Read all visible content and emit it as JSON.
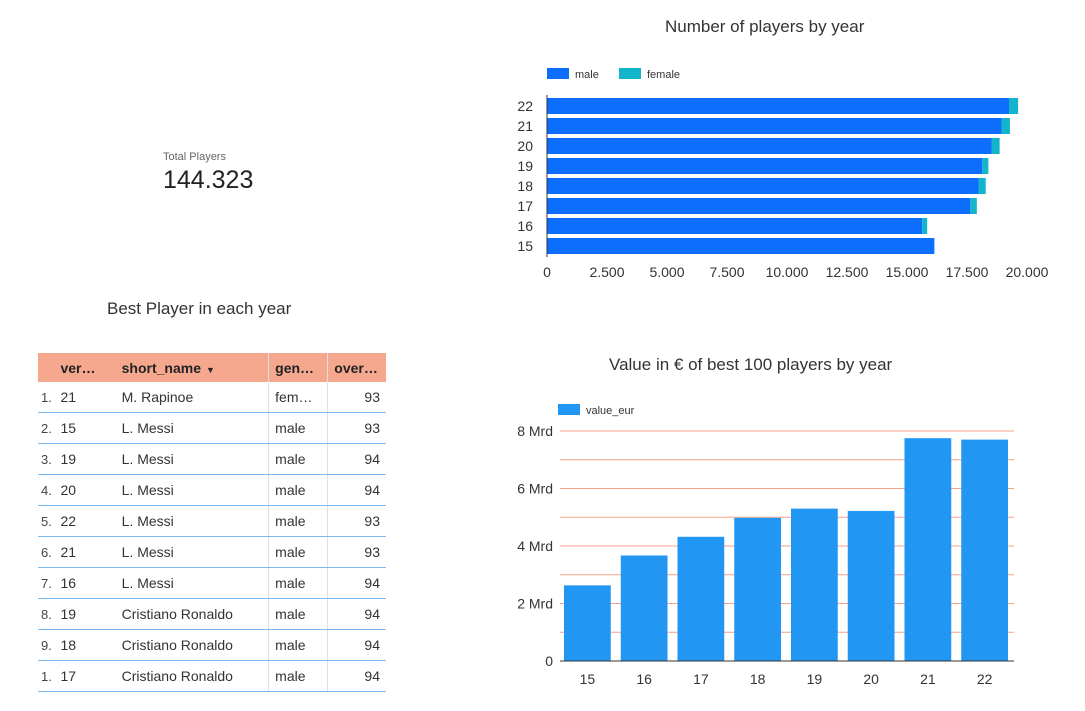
{
  "kpi": {
    "label": "Total Players",
    "value": "144.323"
  },
  "table": {
    "title": "Best Player in each year",
    "headers": [
      "ver…",
      "short_name",
      "gen…",
      "over…"
    ],
    "sort_icon": "sort-down-icon",
    "rows": [
      {
        "idx": "1.",
        "year": "21",
        "name": "M. Rapinoe",
        "gender": "fem…",
        "overall": "93"
      },
      {
        "idx": "2.",
        "year": "15",
        "name": "L. Messi",
        "gender": "male",
        "overall": "93"
      },
      {
        "idx": "3.",
        "year": "19",
        "name": "L. Messi",
        "gender": "male",
        "overall": "94"
      },
      {
        "idx": "4.",
        "year": "20",
        "name": "L. Messi",
        "gender": "male",
        "overall": "94"
      },
      {
        "idx": "5.",
        "year": "22",
        "name": "L. Messi",
        "gender": "male",
        "overall": "93"
      },
      {
        "idx": "6.",
        "year": "21",
        "name": "L. Messi",
        "gender": "male",
        "overall": "93"
      },
      {
        "idx": "7.",
        "year": "16",
        "name": "L. Messi",
        "gender": "male",
        "overall": "94"
      },
      {
        "idx": "8.",
        "year": "19",
        "name": "Cristiano Ronaldo",
        "gender": "male",
        "overall": "94"
      },
      {
        "idx": "9.",
        "year": "18",
        "name": "Cristiano Ronaldo",
        "gender": "male",
        "overall": "94"
      },
      {
        "idx": "1.",
        "year": "17",
        "name": "Cristiano Ronaldo",
        "gender": "male",
        "overall": "94"
      }
    ]
  },
  "colors": {
    "male": "#0d6efd",
    "female": "#12b5cb",
    "value_eur": "#2196f3",
    "gridline": "#f4a28c",
    "header_bg": "#f6a88f"
  },
  "chart_data": [
    {
      "type": "bar",
      "orientation": "horizontal",
      "stacked": true,
      "title": "Number of players by year",
      "categories": [
        "22",
        "21",
        "20",
        "19",
        "18",
        "17",
        "16",
        "15"
      ],
      "series": [
        {
          "name": "male",
          "values": [
            19250,
            18950,
            18520,
            18130,
            17980,
            17640,
            15630,
            16140
          ]
        },
        {
          "name": "female",
          "values": [
            380,
            340,
            340,
            260,
            300,
            270,
            210,
            0
          ]
        }
      ],
      "xlim": [
        0,
        20000
      ],
      "xticks": [
        "0",
        "2.500",
        "5.000",
        "7.500",
        "10.000",
        "12.500",
        "15.000",
        "17.500",
        "20.000"
      ],
      "legend": "top-left",
      "grid": false
    },
    {
      "type": "bar",
      "title": "Value in € of best 100 players by year",
      "categories": [
        "15",
        "16",
        "17",
        "18",
        "19",
        "20",
        "21",
        "22"
      ],
      "series": [
        {
          "name": "value_eur",
          "values": [
            2.63,
            3.67,
            4.32,
            4.98,
            5.3,
            5.22,
            7.75,
            7.7
          ]
        }
      ],
      "ylim": [
        0,
        8
      ],
      "yticks": [
        "0",
        "2 Mrd",
        "4 Mrd",
        "6 Mrd",
        "8 Mrd"
      ],
      "unit": "Mrd",
      "legend": "top-left",
      "grid": true
    }
  ]
}
